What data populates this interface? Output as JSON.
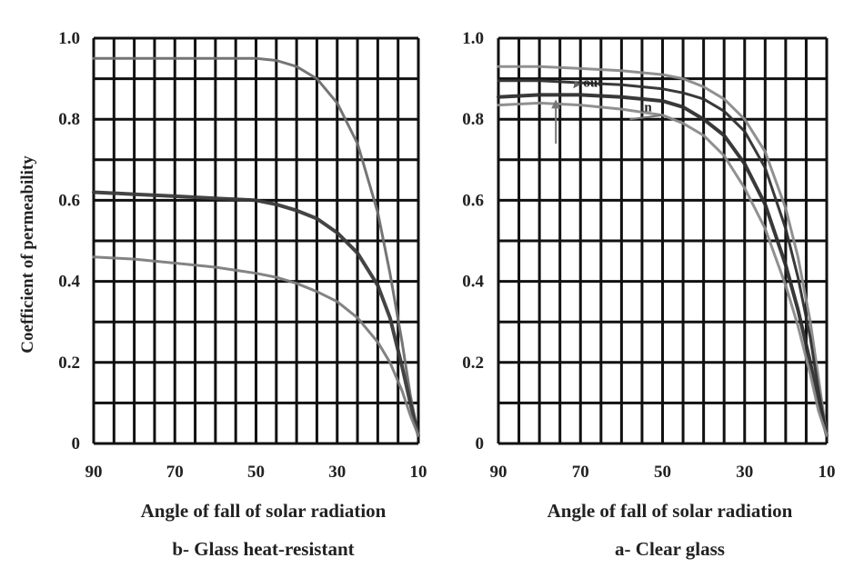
{
  "figure": {
    "ylabel": "Coefficient of permeability"
  },
  "chart_data": [
    {
      "type": "line",
      "caption": "b- Glass heat-resistant",
      "xlabel": "Angle of fall of solar radiation",
      "xlim": [
        90,
        10
      ],
      "ylim": [
        0,
        1.0
      ],
      "x_ticks": [
        "90",
        "70",
        "50",
        "30",
        "10"
      ],
      "y_ticks": [
        "0",
        "0.2",
        "0.4",
        "0.6",
        "0.8",
        "1.0"
      ],
      "grid": true,
      "series": [
        {
          "color": "#6e6e6e",
          "width": 3,
          "x": [
            90,
            80,
            70,
            60,
            50,
            45,
            40,
            35,
            30,
            25,
            20,
            17,
            14,
            12,
            10
          ],
          "y": [
            0.95,
            0.95,
            0.95,
            0.95,
            0.95,
            0.945,
            0.93,
            0.9,
            0.84,
            0.74,
            0.57,
            0.42,
            0.25,
            0.12,
            0.02
          ]
        },
        {
          "color": "#3a3a3a",
          "width": 4,
          "x": [
            90,
            80,
            70,
            60,
            50,
            45,
            40,
            35,
            30,
            25,
            20,
            17,
            14,
            12,
            10
          ],
          "y": [
            0.62,
            0.615,
            0.61,
            0.605,
            0.6,
            0.59,
            0.575,
            0.555,
            0.52,
            0.47,
            0.39,
            0.31,
            0.19,
            0.1,
            0.02
          ]
        },
        {
          "color": "#7c7c7c",
          "width": 3,
          "x": [
            90,
            80,
            70,
            60,
            50,
            45,
            40,
            35,
            30,
            25,
            20,
            17,
            14,
            12,
            10
          ],
          "y": [
            0.46,
            0.455,
            0.445,
            0.435,
            0.42,
            0.41,
            0.395,
            0.375,
            0.35,
            0.31,
            0.25,
            0.2,
            0.13,
            0.07,
            0.02
          ]
        }
      ]
    },
    {
      "type": "line",
      "caption": "a- Clear glass",
      "xlabel": "Angle of fall of solar radiation",
      "xlim": [
        90,
        10
      ],
      "ylim": [
        0,
        1.0
      ],
      "x_ticks": [
        "90",
        "70",
        "50",
        "30",
        "10"
      ],
      "y_ticks": [
        "0",
        "0.2",
        "0.4",
        "0.6",
        "0.8",
        "1.0"
      ],
      "grid": true,
      "annotations": [
        {
          "text": "out",
          "x": 67,
          "y": 0.88
        },
        {
          "text": "in",
          "x": 54,
          "y": 0.82
        }
      ],
      "series": [
        {
          "color": "#8a8a8a",
          "width": 3,
          "x": [
            90,
            80,
            70,
            60,
            50,
            45,
            40,
            35,
            30,
            25,
            20,
            17,
            14,
            12,
            10
          ],
          "y": [
            0.93,
            0.93,
            0.925,
            0.92,
            0.91,
            0.9,
            0.88,
            0.85,
            0.8,
            0.72,
            0.58,
            0.46,
            0.3,
            0.16,
            0.02
          ]
        },
        {
          "color": "#2e2e2e",
          "width": 3,
          "x": [
            90,
            80,
            70,
            60,
            50,
            45,
            40,
            35,
            30,
            25,
            20,
            17,
            14,
            12,
            10
          ],
          "y": [
            0.895,
            0.895,
            0.89,
            0.885,
            0.875,
            0.865,
            0.85,
            0.82,
            0.77,
            0.68,
            0.53,
            0.41,
            0.26,
            0.13,
            0.02
          ]
        },
        {
          "color": "#2e2e2e",
          "width": 4,
          "x": [
            90,
            80,
            70,
            60,
            50,
            45,
            40,
            35,
            30,
            25,
            20,
            17,
            14,
            12,
            10
          ],
          "y": [
            0.855,
            0.86,
            0.86,
            0.855,
            0.845,
            0.83,
            0.8,
            0.76,
            0.69,
            0.59,
            0.44,
            0.33,
            0.2,
            0.1,
            0.02
          ]
        },
        {
          "color": "#8a8a8a",
          "width": 3,
          "x": [
            90,
            80,
            70,
            60,
            50,
            45,
            40,
            35,
            30,
            25,
            20,
            17,
            14,
            12,
            10
          ],
          "y": [
            0.835,
            0.84,
            0.835,
            0.825,
            0.81,
            0.79,
            0.76,
            0.71,
            0.63,
            0.53,
            0.39,
            0.29,
            0.17,
            0.08,
            0.02
          ]
        }
      ]
    }
  ]
}
